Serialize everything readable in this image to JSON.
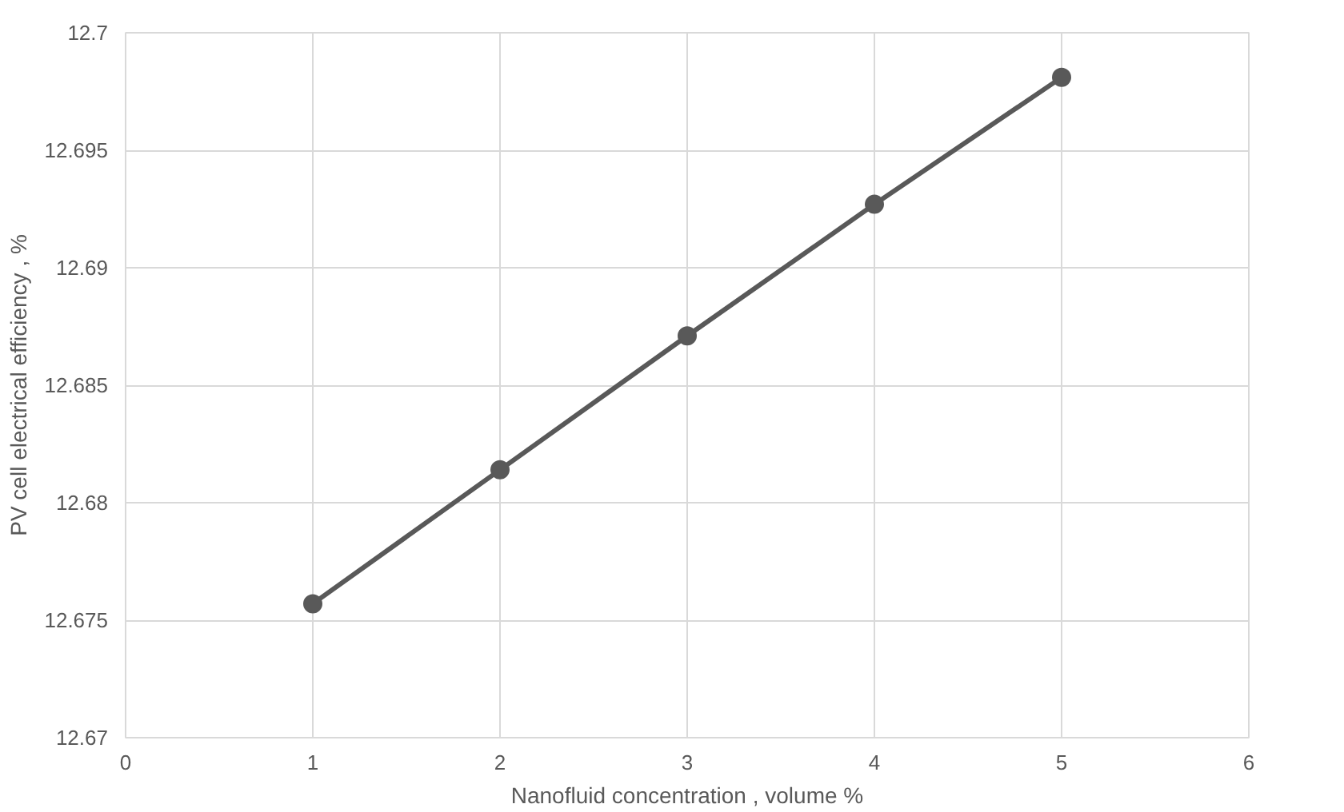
{
  "chart_data": {
    "type": "line",
    "xlabel": "Nanofluid concentration , volume %",
    "ylabel": "PV cell electrical efficiency , %",
    "x": [
      1,
      2,
      3,
      4,
      5
    ],
    "series": [
      {
        "color": "#595959",
        "values": [
          12.6757,
          12.6814,
          12.6871,
          12.6927,
          12.6981
        ]
      }
    ],
    "xlim": [
      0,
      6
    ],
    "xticks": [
      0,
      1,
      2,
      3,
      4,
      5,
      6
    ],
    "ylim": [
      12.67,
      12.7
    ],
    "yticks": [
      12.67,
      12.675,
      12.68,
      12.685,
      12.69,
      12.695,
      12.7
    ],
    "grid": true,
    "marker": "circle",
    "line_style": "solid"
  }
}
